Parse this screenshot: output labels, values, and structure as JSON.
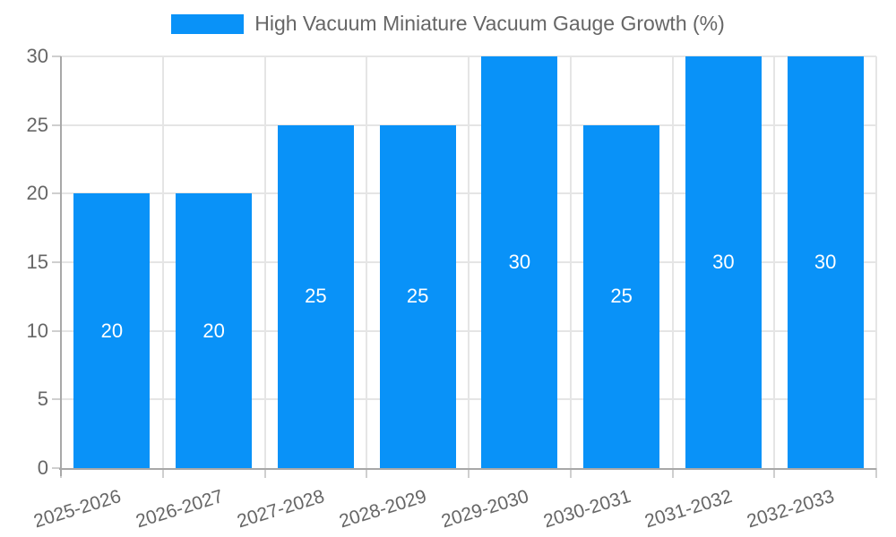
{
  "legend": {
    "label": "High Vacuum Miniature Vacuum Gauge Growth (%)"
  },
  "colors": {
    "bar": "#0992f8",
    "grid": "#e5e5e5",
    "axis": "#a8a8a8",
    "tick": "#cfcfcf",
    "text": "#666666",
    "value_label": "#ffffff",
    "background": "#ffffff"
  },
  "chart_data": {
    "type": "bar",
    "title": "High Vacuum Miniature Vacuum Gauge Growth (%)",
    "categories": [
      "2025-2026",
      "2026-2027",
      "2027-2028",
      "2028-2029",
      "2029-2030",
      "2030-2031",
      "2031-2032",
      "2032-2033"
    ],
    "values": [
      20,
      20,
      25,
      25,
      30,
      25,
      30,
      30
    ],
    "value_labels": [
      "20",
      "20",
      "25",
      "25",
      "30",
      "25",
      "30",
      "30"
    ],
    "xlabel": "",
    "ylabel": "",
    "ylim": [
      0,
      30
    ],
    "yticks": [
      0,
      5,
      10,
      15,
      20,
      25,
      30
    ],
    "grid": true,
    "legend_position": "top",
    "bar_value_labels_shown": true,
    "x_label_rotation_deg": -17
  }
}
